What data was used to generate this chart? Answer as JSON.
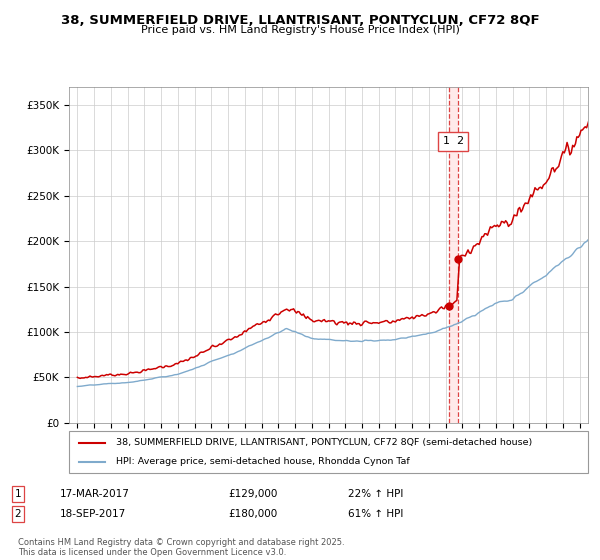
{
  "title": "38, SUMMERFIELD DRIVE, LLANTRISANT, PONTYCLUN, CF72 8QF",
  "subtitle": "Price paid vs. HM Land Registry's House Price Index (HPI)",
  "legend_line1": "38, SUMMERFIELD DRIVE, LLANTRISANT, PONTYCLUN, CF72 8QF (semi-detached house)",
  "legend_line2": "HPI: Average price, semi-detached house, Rhondda Cynon Taf",
  "footnote": "Contains HM Land Registry data © Crown copyright and database right 2025.\nThis data is licensed under the Open Government Licence v3.0.",
  "ann1_label": "1",
  "ann1_date": "17-MAR-2017",
  "ann1_price": "£129,000",
  "ann1_hpi": "22% ↑ HPI",
  "ann2_label": "2",
  "ann2_date": "18-SEP-2017",
  "ann2_price": "£180,000",
  "ann2_hpi": "61% ↑ HPI",
  "red_color": "#cc0000",
  "blue_color": "#7faacc",
  "dashed_color": "#dd4444",
  "shaded_color": "#ffdddd",
  "ylim_max": 370000,
  "yticks": [
    0,
    50000,
    100000,
    150000,
    200000,
    250000,
    300000,
    350000
  ],
  "ytick_labels": [
    "£0",
    "£50K",
    "£100K",
    "£150K",
    "£200K",
    "£250K",
    "£300K",
    "£350K"
  ],
  "purchase1_year": 2017.208,
  "purchase1_price": 129000,
  "purchase2_year": 2017.708,
  "purchase2_price": 180000,
  "xmin": 1994.5,
  "xmax": 2025.5
}
